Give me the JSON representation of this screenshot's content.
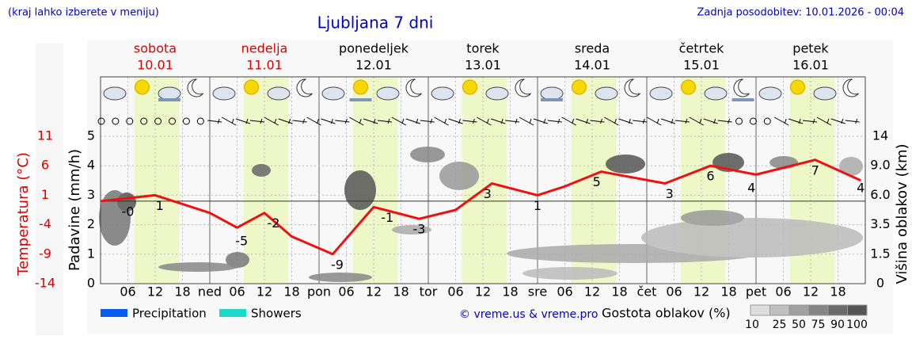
{
  "header": {
    "hint": "(kraj lahko izberete v meniju)",
    "title": "Ljubljana 7 dni",
    "updated": "Zadnja posodobitev: 10.01.2026 - 00:04"
  },
  "days": [
    {
      "name": "sobota",
      "date": "10.01",
      "color": "#e00000"
    },
    {
      "name": "nedelja",
      "date": "11.01",
      "color": "#e00000"
    },
    {
      "name": "ponedeljek",
      "date": "12.01",
      "color": "#000000"
    },
    {
      "name": "torek",
      "date": "13.01",
      "color": "#000000"
    },
    {
      "name": "sreda",
      "date": "14.01",
      "color": "#000000"
    },
    {
      "name": "četrtek",
      "date": "15.01",
      "color": "#000000"
    },
    {
      "name": "petek",
      "date": "16.01",
      "color": "#000000"
    }
  ],
  "chart_data": {
    "type": "line",
    "xlim": [
      0,
      168
    ],
    "xticks": [
      {
        "value": 6,
        "label": "06"
      },
      12,
      18,
      {
        "value": 24,
        "label": "ned"
      },
      {
        "value": 30,
        "label": "06"
      },
      {
        "value": 36,
        "label": "12"
      },
      {
        "value": 42,
        "label": "18"
      },
      {
        "value": 48,
        "label": "pon"
      },
      {
        "value": 54,
        "label": "06"
      },
      {
        "value": 60,
        "label": "12"
      },
      {
        "value": 66,
        "label": "18"
      },
      {
        "value": 72,
        "label": "tor"
      },
      {
        "value": 78,
        "label": "06"
      },
      {
        "value": 84,
        "label": "12"
      },
      {
        "value": 90,
        "label": "18"
      },
      {
        "value": 96,
        "label": "sre"
      },
      {
        "value": 102,
        "label": "06"
      },
      {
        "value": 108,
        "label": "12"
      },
      {
        "value": 114,
        "label": "18"
      },
      {
        "value": 120,
        "label": "čet"
      },
      {
        "value": 126,
        "label": "06"
      },
      {
        "value": 132,
        "label": "12"
      },
      {
        "value": 138,
        "label": "18"
      },
      {
        "value": 144,
        "label": "pet"
      },
      {
        "value": 150,
        "label": "06"
      },
      {
        "value": 156,
        "label": "12"
      },
      {
        "value": 162,
        "label": "18"
      }
    ],
    "ylabel": "Padavine (mm/h)",
    "ylim": [
      0,
      5
    ],
    "yticks": [
      0,
      1,
      2,
      3,
      4,
      5
    ],
    "temp_label": "Temperatura (°C)",
    "temp_lim": [
      -14,
      11
    ],
    "temp_ticks": [
      -14,
      -9,
      -4,
      1,
      6,
      11
    ],
    "y2label": "Višina oblakov (km)",
    "y2lim": [
      0,
      14
    ],
    "y2ticks": [
      0,
      1.5,
      3.5,
      {
        "value": 6,
        "label": "6.0"
      },
      {
        "value": 9,
        "label": "9.0"
      },
      14
    ],
    "freezing_line": 0,
    "x": [
      0,
      12,
      24,
      30,
      36,
      42,
      51,
      60,
      70,
      78,
      86,
      96,
      102,
      110,
      124,
      134,
      144,
      157,
      167
    ],
    "series": [
      {
        "color": "#ee1111",
        "axis": "temp",
        "values": [
          0,
          1,
          -2,
          -4.5,
          -2,
          -6,
          -9,
          -1,
          -3,
          -1.5,
          3,
          1,
          2.5,
          5,
          3,
          6,
          4.5,
          7,
          3.5
        ]
      }
    ],
    "annotations": {
      "x": [
        6,
        13,
        31,
        38,
        52,
        63,
        70,
        85,
        96,
        109,
        125,
        134,
        143,
        157,
        167
      ],
      "values": [
        0,
        1,
        -5,
        -2,
        -9,
        -1,
        -3,
        3,
        1,
        5,
        3,
        6,
        4,
        7,
        4
      ],
      "value_labels": [
        "-0",
        "1",
        "-5",
        "-2",
        "-9",
        "-1",
        "-3",
        "3",
        "1",
        "5",
        "3",
        "6",
        "4",
        "7",
        "4"
      ]
    },
    "legend": [
      {
        "name": "Precipitation",
        "color": "#0a5cf0"
      },
      {
        "name": "Showers",
        "color": "#1ed8c8"
      }
    ],
    "credit": "© vreme.us & vreme.pro",
    "density_label": "Gostota oblakov (%)",
    "density_scale": [
      {
        "value": 10,
        "color": "#dddddd"
      },
      {
        "value": 25,
        "color": "#c0c0c0"
      },
      {
        "value": 50,
        "color": "#a0a0a0"
      },
      {
        "value": 75,
        "color": "#858585"
      },
      {
        "value": 90,
        "color": "#6a6a6a"
      },
      {
        "value": 100,
        "color": "#555555"
      }
    ]
  }
}
